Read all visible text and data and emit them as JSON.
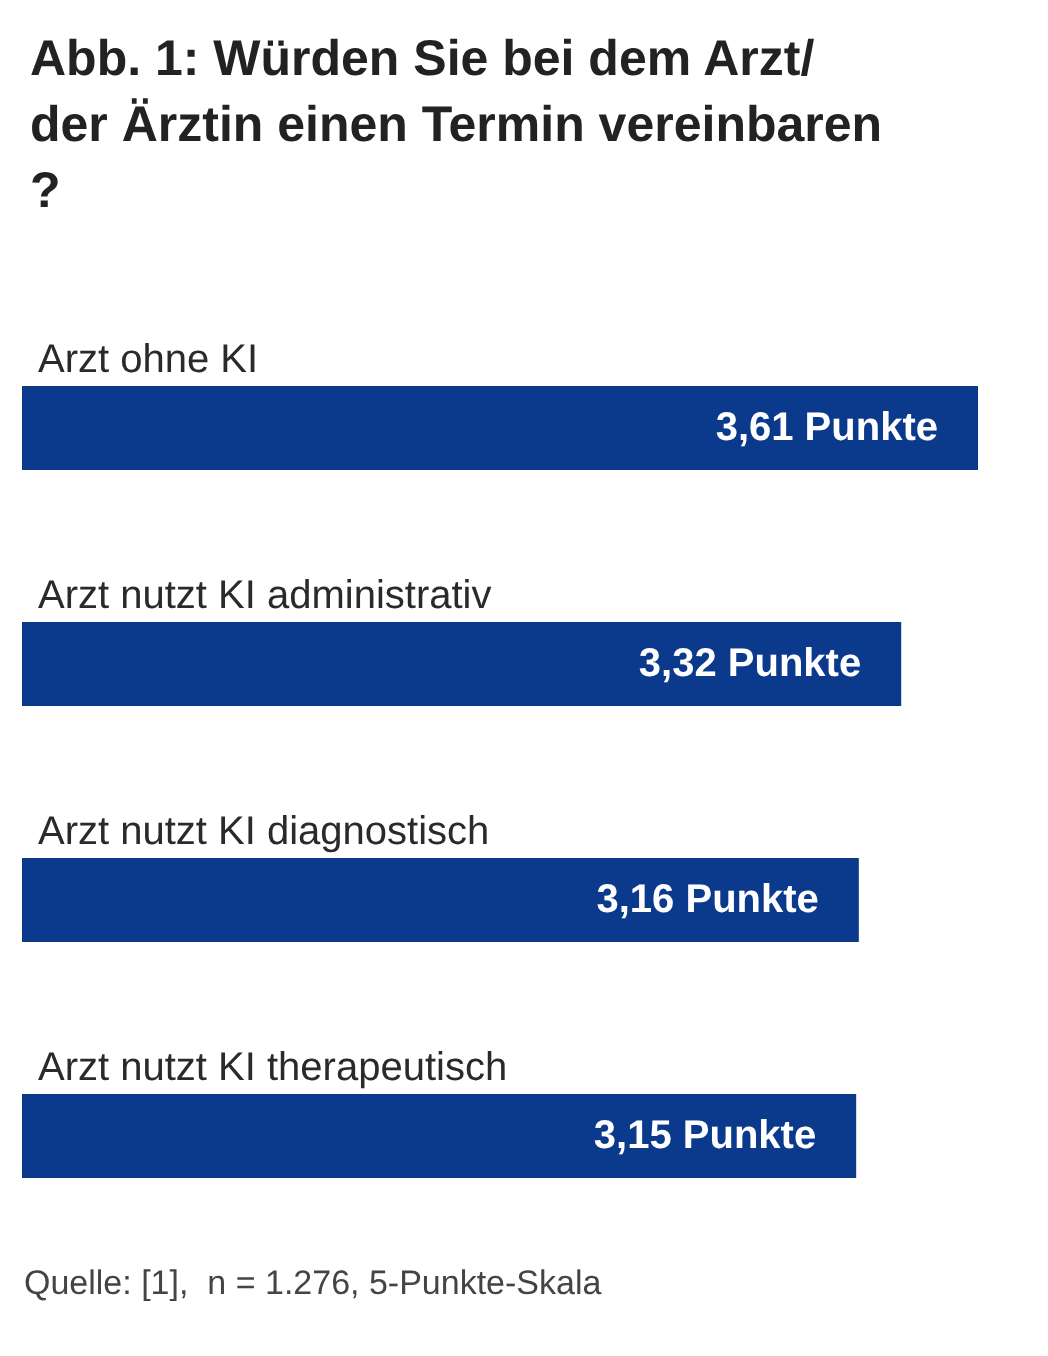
{
  "chart_data": {
    "type": "bar",
    "orientation": "horizontal",
    "title": "Abb. 1: Würden Sie bei dem Arzt/der Ärztin einen Termin vereinbaren?",
    "categories": [
      "Arzt ohne KI",
      "Arzt nutzt KI administrativ",
      "Arzt nutzt KI diagnostisch",
      "Arzt nutzt KI therapeutisch"
    ],
    "values": [
      3.61,
      3.32,
      3.16,
      3.15
    ],
    "value_labels": [
      "3,61 Punkte",
      "3,32 Punkte",
      "3,16 Punkte",
      "3,15 Punkte"
    ],
    "color": "#0b3a8c",
    "annotations": [
      "Quelle: [1],  n = 1.276, 5-Punkte-Skala"
    ]
  }
}
